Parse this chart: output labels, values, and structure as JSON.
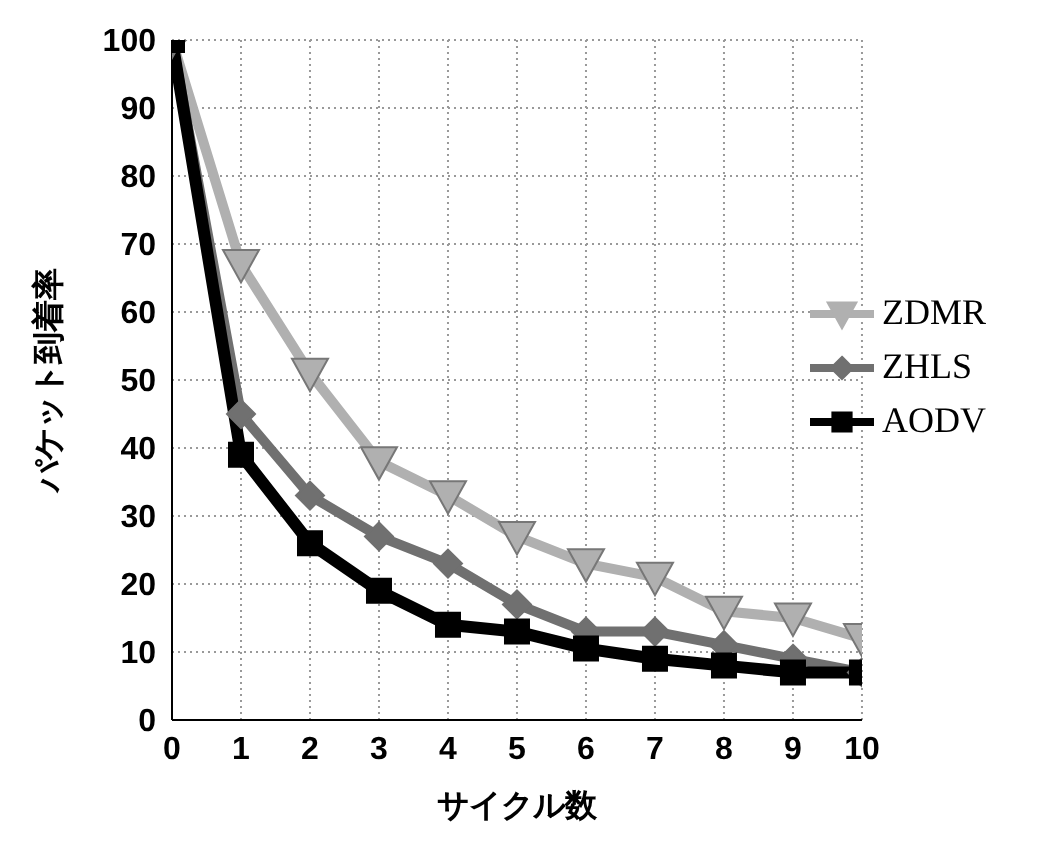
{
  "chart_data": {
    "type": "line",
    "xlabel": "サイクル数",
    "ylabel": "パケット到着率",
    "x": [
      0,
      1,
      2,
      3,
      4,
      5,
      6,
      7,
      8,
      9,
      10
    ],
    "xlim": [
      0,
      10
    ],
    "xticks": [
      0,
      1,
      2,
      3,
      4,
      5,
      6,
      7,
      8,
      9,
      10
    ],
    "ylim": [
      0,
      100
    ],
    "yticks": [
      0,
      10,
      20,
      30,
      40,
      50,
      60,
      70,
      80,
      90,
      100
    ],
    "grid": true,
    "legend": "right",
    "line_style": "solid",
    "series": [
      {
        "name": "ZDMR",
        "color": "#b0b0b0",
        "marker": "triangle",
        "values": [
          100,
          67,
          51,
          38,
          33,
          27,
          23,
          21,
          16,
          15,
          12
        ]
      },
      {
        "name": "ZHLS",
        "color": "#707070",
        "marker": "diamond",
        "values": [
          100,
          45,
          33,
          27,
          23,
          17,
          13,
          13,
          11,
          9,
          7
        ]
      },
      {
        "name": "AODV",
        "color": "#000000",
        "marker": "square",
        "values": [
          100,
          39,
          26,
          19,
          14,
          13,
          10.5,
          9,
          8,
          7,
          7
        ]
      }
    ]
  }
}
